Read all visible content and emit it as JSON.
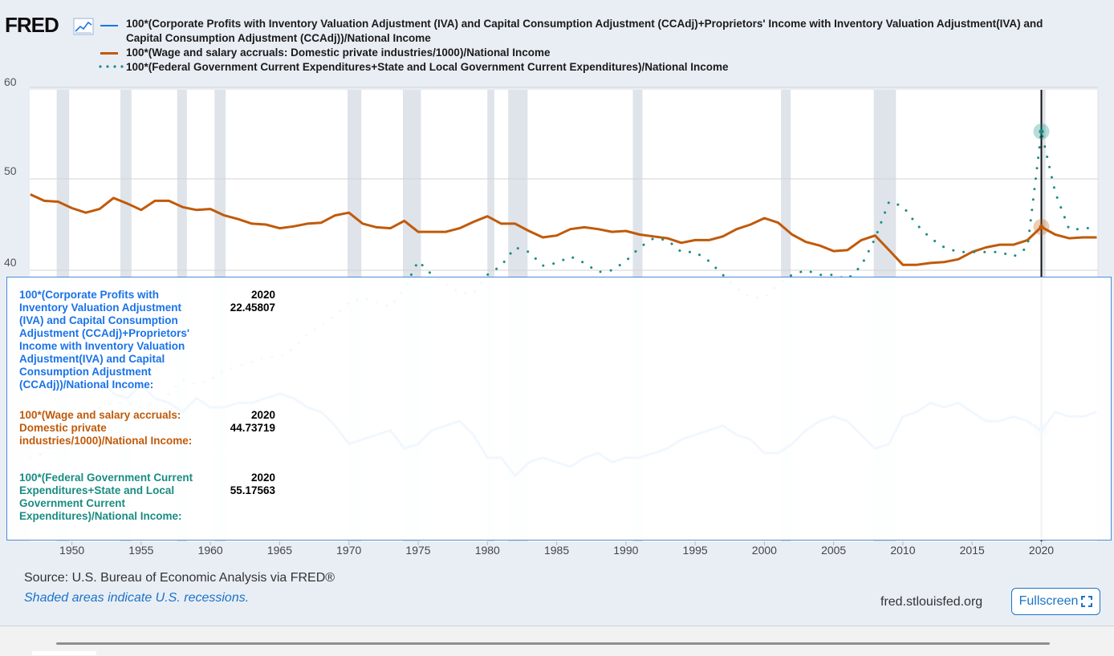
{
  "logo": "FRED",
  "legend": [
    {
      "label": "100*(Corporate Profits with Inventory Valuation Adjustment (IVA) and Capital Consumption Adjustment (CCAdj)+Proprietors' Income with Inventory Valuation Adjustment(IVA) and",
      "label2": "Capital Consumption Adjustment (CCAdj))/National Income",
      "color": "#1a73e8",
      "style": "solid"
    },
    {
      "label": "100*(Wage and salary accruals: Domestic private industries/1000)/National Income",
      "color": "#c05a0a",
      "style": "solid"
    },
    {
      "label": "100*(Federal Government Current Expenditures+State and Local Government Current Expenditures)/National Income",
      "color": "#1a8c82",
      "style": "dotted"
    }
  ],
  "tooltip": {
    "items": [
      {
        "label": "100*(Corporate Profits with Inventory Valuation Adjustment (IVA) and Capital Consumption Adjustment (CCAdj)+Proprietors' Income with Inventory Valuation Adjustment(IVA) and Capital Consumption Adjustment (CCAdj))/National Income:",
        "year": "2020",
        "value": "22.45807",
        "color": "#1a73e8"
      },
      {
        "label": "100*(Wage and salary accruals: Domestic private industries/1000)/National Income:",
        "year": "2020",
        "value": "44.73719",
        "color": "#c05a0a"
      },
      {
        "label": "100*(Federal Government Current Expenditures+State and Local Government Current Expenditures)/National Income:",
        "year": "2020",
        "value": "55.17563",
        "color": "#1a8c82"
      }
    ]
  },
  "footer": {
    "source": "Source: U.S. Bureau of Economic Analysis via FRED®",
    "recession_note": "Shaded areas indicate U.S. recessions.",
    "url": "fred.stlouisfed.org",
    "fullscreen_label": "Fullscreen"
  },
  "chart_data": {
    "type": "line",
    "title": "",
    "xlabel": "",
    "ylabel": "",
    "xlim": [
      1947,
      2024
    ],
    "ylim": [
      10,
      60
    ],
    "yticks": [
      60,
      50,
      40
    ],
    "xticks": [
      "1950",
      "1955",
      "1960",
      "1965",
      "1970",
      "1975",
      "1980",
      "1985",
      "1990",
      "1995",
      "2000",
      "2005",
      "2010",
      "2015",
      "2020"
    ],
    "grid": true,
    "highlight_year": 2020,
    "recessions": [
      [
        1948.9,
        1949.8
      ],
      [
        1953.5,
        1954.3
      ],
      [
        1957.6,
        1958.3
      ],
      [
        1960.3,
        1961.1
      ],
      [
        1969.9,
        1970.9
      ],
      [
        1973.9,
        1975.2
      ],
      [
        1980.0,
        1980.5
      ],
      [
        1981.5,
        1982.9
      ],
      [
        1990.5,
        1991.2
      ],
      [
        2001.2,
        2001.9
      ],
      [
        2007.9,
        2009.5
      ],
      [
        2020.0,
        2020.3
      ]
    ],
    "series": [
      {
        "name": "100*(Corporate Profits with Inventory Valuation Adjustment (IVA) and Capital Consumption Adjustment (CCAdj)+Proprietors' Income with Inventory Valuation Adjustment(IVA) and Capital Consumption Adjustment (CCAdj))/National Income",
        "color": "#1a73e8",
        "style": "solid",
        "x": [
          1947,
          1948,
          1949,
          1950,
          1951,
          1952,
          1953,
          1954,
          1955,
          1956,
          1957,
          1958,
          1959,
          1960,
          1961,
          1962,
          1963,
          1964,
          1965,
          1966,
          1967,
          1968,
          1969,
          1970,
          1971,
          1972,
          1973,
          1974,
          1975,
          1976,
          1977,
          1978,
          1979,
          1980,
          1981,
          1982,
          1983,
          1984,
          1985,
          1986,
          1987,
          1988,
          1989,
          1990,
          1991,
          1992,
          1993,
          1994,
          1995,
          1996,
          1997,
          1998,
          1999,
          2000,
          2001,
          2002,
          2003,
          2004,
          2005,
          2006,
          2007,
          2008,
          2009,
          2010,
          2011,
          2012,
          2013,
          2014,
          2015,
          2016,
          2017,
          2018,
          2019,
          2020,
          2021,
          2022,
          2023,
          2024
        ],
        "y": [
          30.5,
          31.5,
          29.8,
          31.0,
          30.0,
          28.5,
          26.5,
          26.0,
          27.5,
          26.0,
          25.5,
          24.5,
          26.0,
          25.0,
          25.0,
          25.5,
          25.5,
          26.0,
          26.5,
          26.0,
          25.0,
          24.5,
          23.0,
          21.0,
          21.5,
          22.0,
          22.5,
          20.5,
          21.0,
          22.5,
          23.0,
          23.5,
          22.0,
          19.5,
          19.5,
          17.5,
          19.0,
          19.5,
          19.0,
          18.5,
          19.5,
          20.0,
          19.0,
          19.5,
          19.5,
          20.0,
          20.5,
          21.5,
          22.0,
          22.5,
          23.0,
          22.0,
          21.5,
          20.0,
          20.0,
          21.0,
          22.5,
          23.5,
          24.0,
          23.5,
          22.0,
          20.5,
          21.0,
          24.0,
          24.5,
          25.5,
          25.0,
          25.5,
          24.5,
          23.5,
          23.5,
          24.0,
          23.5,
          22.46,
          24.5,
          24.0,
          24.0,
          24.5
        ]
      },
      {
        "name": "100*(Wage and salary accruals: Domestic private industries/1000)/National Income",
        "color": "#c05a0a",
        "style": "solid",
        "x": [
          1947,
          1948,
          1949,
          1950,
          1951,
          1952,
          1953,
          1954,
          1955,
          1956,
          1957,
          1958,
          1959,
          1960,
          1961,
          1962,
          1963,
          1964,
          1965,
          1966,
          1967,
          1968,
          1969,
          1970,
          1971,
          1972,
          1973,
          1974,
          1975,
          1976,
          1977,
          1978,
          1979,
          1980,
          1981,
          1982,
          1983,
          1984,
          1985,
          1986,
          1987,
          1988,
          1989,
          1990,
          1991,
          1992,
          1993,
          1994,
          1995,
          1996,
          1997,
          1998,
          1999,
          2000,
          2001,
          2002,
          2003,
          2004,
          2005,
          2006,
          2007,
          2008,
          2009,
          2010,
          2011,
          2012,
          2013,
          2014,
          2015,
          2016,
          2017,
          2018,
          2019,
          2020,
          2021,
          2022,
          2023,
          2024
        ],
        "y": [
          48.3,
          47.6,
          47.5,
          46.8,
          46.3,
          46.7,
          47.9,
          47.3,
          46.6,
          47.6,
          47.6,
          46.9,
          46.6,
          46.7,
          46.0,
          45.6,
          45.1,
          45.0,
          44.6,
          44.8,
          45.1,
          45.2,
          46.0,
          46.3,
          45.1,
          44.7,
          44.6,
          45.4,
          44.2,
          44.2,
          44.2,
          44.6,
          45.3,
          45.9,
          45.1,
          45.1,
          44.3,
          43.6,
          43.8,
          44.5,
          44.7,
          44.5,
          44.2,
          44.3,
          43.9,
          43.7,
          43.5,
          43.0,
          43.3,
          43.3,
          43.7,
          44.5,
          45.0,
          45.7,
          45.2,
          43.9,
          43.1,
          42.7,
          42.1,
          42.2,
          43.3,
          43.8,
          42.2,
          40.6,
          40.6,
          40.8,
          40.9,
          41.2,
          42.0,
          42.5,
          42.8,
          42.8,
          43.3,
          44.74,
          43.9,
          43.5,
          43.6,
          43.6
        ]
      },
      {
        "name": "100*(Federal Government Current Expenditures+State and Local Government Current Expenditures)/National Income",
        "color": "#1a8c82",
        "style": "dotted",
        "x": [
          1947,
          1948,
          1949,
          1950,
          1951,
          1952,
          1953,
          1954,
          1955,
          1956,
          1957,
          1958,
          1959,
          1960,
          1961,
          1962,
          1963,
          1964,
          1965,
          1966,
          1967,
          1968,
          1969,
          1970,
          1971,
          1972,
          1973,
          1974,
          1975,
          1976,
          1977,
          1978,
          1979,
          1980,
          1981,
          1982,
          1983,
          1984,
          1985,
          1986,
          1987,
          1988,
          1989,
          1990,
          1991,
          1992,
          1993,
          1994,
          1995,
          1996,
          1997,
          1998,
          1999,
          2000,
          2001,
          2002,
          2003,
          2004,
          2005,
          2006,
          2007,
          2008,
          2009,
          2010,
          2011,
          2012,
          2013,
          2014,
          2015,
          2016,
          2017,
          2018,
          2019,
          2020,
          2021,
          2022,
          2023,
          2024
        ],
        "y": [
          19.5,
          20.0,
          22.0,
          21.5,
          23.5,
          25.0,
          25.5,
          25.5,
          25.0,
          25.5,
          26.5,
          28.0,
          27.5,
          28.0,
          29.0,
          29.5,
          30.0,
          30.5,
          30.5,
          31.5,
          33.0,
          34.0,
          35.0,
          36.5,
          37.0,
          36.5,
          36.0,
          38.0,
          41.0,
          39.5,
          38.5,
          37.5,
          37.5,
          39.5,
          40.5,
          42.5,
          42.0,
          40.5,
          40.8,
          41.5,
          40.8,
          39.8,
          40.0,
          41.0,
          42.5,
          43.5,
          43.3,
          42.0,
          42.0,
          41.0,
          39.5,
          38.0,
          37.0,
          37.0,
          38.5,
          39.5,
          40.0,
          39.5,
          39.5,
          39.0,
          40.5,
          43.5,
          47.5,
          47.0,
          45.0,
          43.5,
          42.5,
          42.0,
          42.0,
          42.0,
          42.0,
          41.5,
          42.5,
          55.18,
          48.5,
          44.5,
          44.5,
          44.8
        ]
      }
    ]
  }
}
